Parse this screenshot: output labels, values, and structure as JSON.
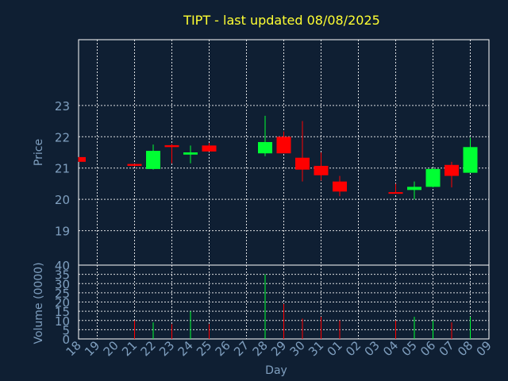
{
  "chart_data": {
    "type": "candlestick",
    "title": "TIPT - last updated 08/08/2025",
    "xlabel": "Day",
    "price_panel": {
      "ylabel": "Price",
      "ylim": [
        17.9,
        25.1
      ],
      "yticks": [
        19,
        20,
        21,
        22,
        23
      ]
    },
    "volume_panel": {
      "ylabel": "Volume (0000)",
      "ylim": [
        0,
        40
      ],
      "yticks": [
        0,
        5,
        10,
        15,
        20,
        25,
        30,
        35,
        40
      ]
    },
    "x_tick_labels": [
      "18",
      "19",
      "20",
      "21",
      "22",
      "23",
      "24",
      "25",
      "26",
      "27",
      "28",
      "29",
      "30",
      "31",
      "01",
      "02",
      "03",
      "04",
      "05",
      "06",
      "07",
      "08",
      "09"
    ],
    "candles": [
      {
        "day": "18",
        "open": 21.35,
        "close": 21.2,
        "high": 21.35,
        "low": 21.2,
        "volume": 0
      },
      {
        "day": "21",
        "open": 21.13,
        "close": 21.07,
        "high": 21.13,
        "low": 21.05,
        "volume": 10
      },
      {
        "day": "22",
        "open": 20.97,
        "close": 21.55,
        "high": 21.75,
        "low": 20.95,
        "volume": 9
      },
      {
        "day": "23",
        "open": 21.73,
        "close": 21.67,
        "high": 21.77,
        "low": 21.15,
        "volume": 8
      },
      {
        "day": "24",
        "open": 21.43,
        "close": 21.5,
        "high": 21.72,
        "low": 21.15,
        "volume": 15
      },
      {
        "day": "25",
        "open": 21.72,
        "close": 21.53,
        "high": 21.8,
        "low": 21.53,
        "volume": 8
      },
      {
        "day": "28",
        "open": 21.47,
        "close": 21.83,
        "high": 22.67,
        "low": 21.38,
        "volume": 35
      },
      {
        "day": "29",
        "open": 22.0,
        "close": 21.47,
        "high": 22.17,
        "low": 21.47,
        "volume": 19
      },
      {
        "day": "30",
        "open": 21.33,
        "close": 20.95,
        "high": 22.5,
        "low": 20.57,
        "volume": 11
      },
      {
        "day": "31",
        "open": 21.07,
        "close": 20.77,
        "high": 21.5,
        "low": 20.6,
        "volume": 12
      },
      {
        "day": "01",
        "open": 20.57,
        "close": 20.25,
        "high": 20.75,
        "low": 20.1,
        "volume": 10
      },
      {
        "day": "04",
        "open": 20.23,
        "close": 20.2,
        "high": 20.5,
        "low": 20.2,
        "volume": 10
      },
      {
        "day": "05",
        "open": 20.3,
        "close": 20.4,
        "high": 20.57,
        "low": 20.0,
        "volume": 12
      },
      {
        "day": "06",
        "open": 20.4,
        "close": 20.97,
        "high": 21.0,
        "low": 20.38,
        "volume": 10
      },
      {
        "day": "07",
        "open": 21.1,
        "close": 20.75,
        "high": 21.2,
        "low": 20.38,
        "volume": 9
      },
      {
        "day": "08",
        "open": 20.85,
        "close": 21.67,
        "high": 21.97,
        "low": 20.85,
        "volume": 12
      }
    ],
    "colors": {
      "background": "#0f1f33",
      "up": "#00ff33",
      "down": "#ff0000",
      "grid": "#ffffff",
      "title": "#ffff33",
      "axis_text": "#7f9fbf"
    },
    "grid": true
  }
}
